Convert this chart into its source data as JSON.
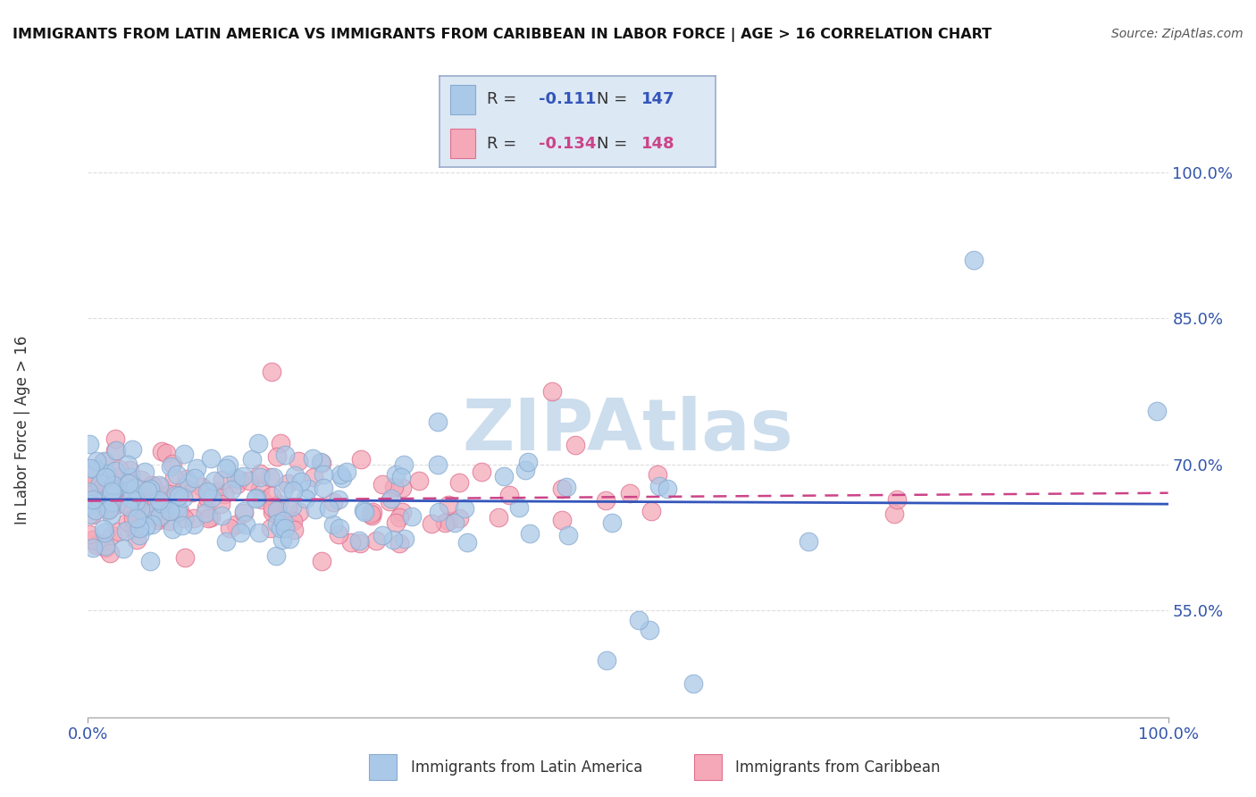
{
  "title": "IMMIGRANTS FROM LATIN AMERICA VS IMMIGRANTS FROM CARIBBEAN IN LABOR FORCE | AGE > 16 CORRELATION CHART",
  "source": "Source: ZipAtlas.com",
  "ylabel": "In Labor Force | Age > 16",
  "series": [
    {
      "name": "Immigrants from Latin America",
      "color": "#aac9e8",
      "edge_color": "#88aad0",
      "R": -0.111,
      "N": 147,
      "line_color": "#3355bb"
    },
    {
      "name": "Immigrants from Caribbean",
      "color": "#f4a8b8",
      "edge_color": "#e07090",
      "R": -0.134,
      "N": 148,
      "line_color": "#cc4488"
    }
  ],
  "xlim": [
    0.0,
    1.0
  ],
  "ylim": [
    0.44,
    1.03
  ],
  "yticks": [
    0.55,
    0.7,
    0.85,
    1.0
  ],
  "ytick_labels": [
    "55.0%",
    "70.0%",
    "85.0%",
    "100.0%"
  ],
  "xtick_labels": [
    "0.0%",
    "100.0%"
  ],
  "watermark": "ZIPAtlas",
  "watermark_color": "#ccdded",
  "background_color": "#ffffff",
  "grid_color": "#dddddd",
  "legend_box_color": "#dde8f5",
  "legend_border_color": "#99aacc",
  "title_color": "#111111",
  "axis_color": "#3355aa",
  "seed": 42
}
